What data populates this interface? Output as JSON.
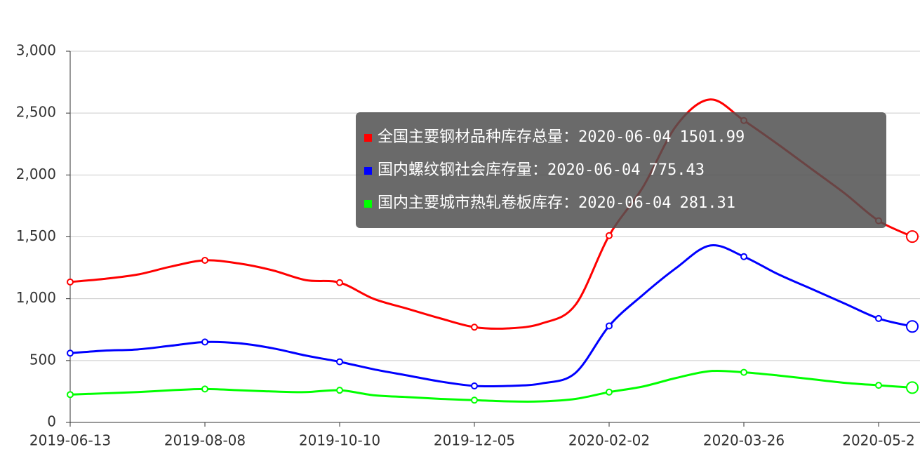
{
  "chart_data": {
    "type": "line",
    "categories": [
      "2019-06-13",
      null,
      null,
      null,
      "2019-08-08",
      null,
      null,
      null,
      "2019-10-10",
      null,
      null,
      null,
      "2019-12-05",
      null,
      null,
      null,
      "2020-02-02",
      null,
      null,
      null,
      "2020-03-26",
      null,
      null,
      null,
      "2020-05-2",
      "2020-06-04"
    ],
    "series": [
      {
        "name": "全国主要钢材品种库存总量",
        "color": "#ff0000",
        "values": [
          1135,
          1160,
          1195,
          1260,
          1310,
          1285,
          1230,
          1150,
          1130,
          1000,
          920,
          840,
          770,
          760,
          800,
          950,
          1510,
          1900,
          2400,
          2610,
          2440,
          2250,
          2050,
          1850,
          1630,
          1501.99
        ]
      },
      {
        "name": "国内螺纹钢社会库存量",
        "color": "#0000ff",
        "values": [
          560,
          580,
          590,
          620,
          650,
          640,
          600,
          540,
          490,
          430,
          380,
          330,
          295,
          295,
          315,
          400,
          780,
          1030,
          1250,
          1430,
          1340,
          1200,
          1080,
          960,
          840,
          775.43
        ]
      },
      {
        "name": "国内主要城市热轧卷板库存",
        "color": "#00ff00",
        "values": [
          225,
          235,
          245,
          260,
          270,
          260,
          250,
          245,
          260,
          220,
          205,
          190,
          180,
          170,
          170,
          190,
          245,
          290,
          360,
          415,
          405,
          380,
          350,
          320,
          300,
          281.31
        ]
      }
    ],
    "ylim": [
      0,
      3000
    ],
    "yticks": [
      0,
      {
        "value": 500,
        "label": "500"
      },
      {
        "value": 1000,
        "label": "1,000"
      },
      {
        "value": 1500,
        "label": "1,500"
      },
      {
        "value": 2000,
        "label": "2,000"
      },
      {
        "value": 2500,
        "label": "2,500"
      },
      {
        "value": 3000,
        "label": "3,000"
      }
    ],
    "grid": true,
    "tooltip": {
      "separator": "："
    }
  }
}
